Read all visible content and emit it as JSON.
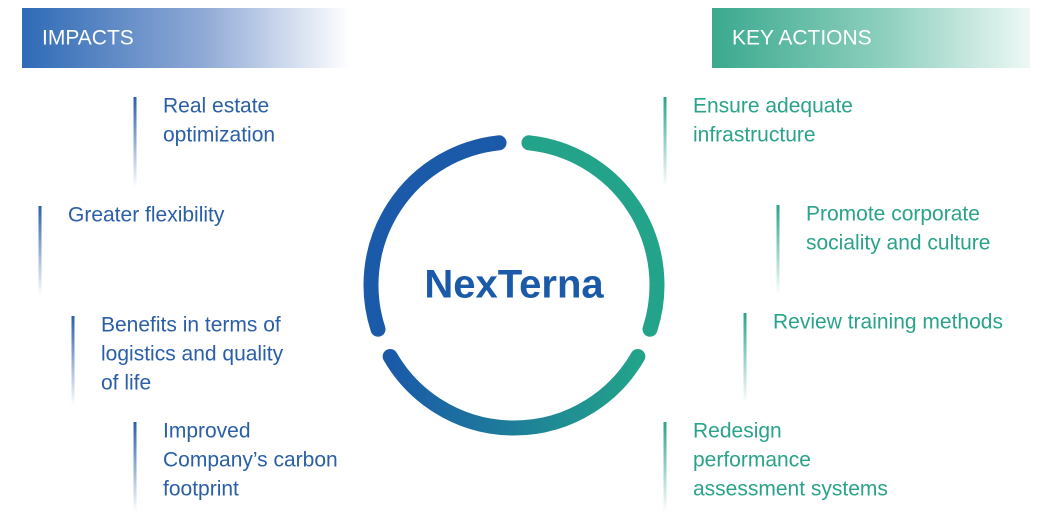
{
  "header": {
    "left_title": "IMPACTS",
    "right_title": "KEY ACTIONS"
  },
  "center_label": "NexTerna",
  "impacts": [
    {
      "lines": [
        "Real estate",
        "optimization"
      ]
    },
    {
      "lines": [
        "Greater flexibility"
      ]
    },
    {
      "lines": [
        "Benefits in terms of",
        "logistics and quality",
        "of life"
      ]
    },
    {
      "lines": [
        "Improved",
        "Company’s carbon",
        "footprint"
      ]
    }
  ],
  "actions": [
    {
      "lines": [
        "Ensure adequate",
        "infrastructure"
      ]
    },
    {
      "lines": [
        "Promote corporate",
        "sociality and culture"
      ]
    },
    {
      "lines": [
        "Review training methods"
      ]
    },
    {
      "lines": [
        "Redesign",
        "performance",
        "assessment systems"
      ]
    }
  ]
}
